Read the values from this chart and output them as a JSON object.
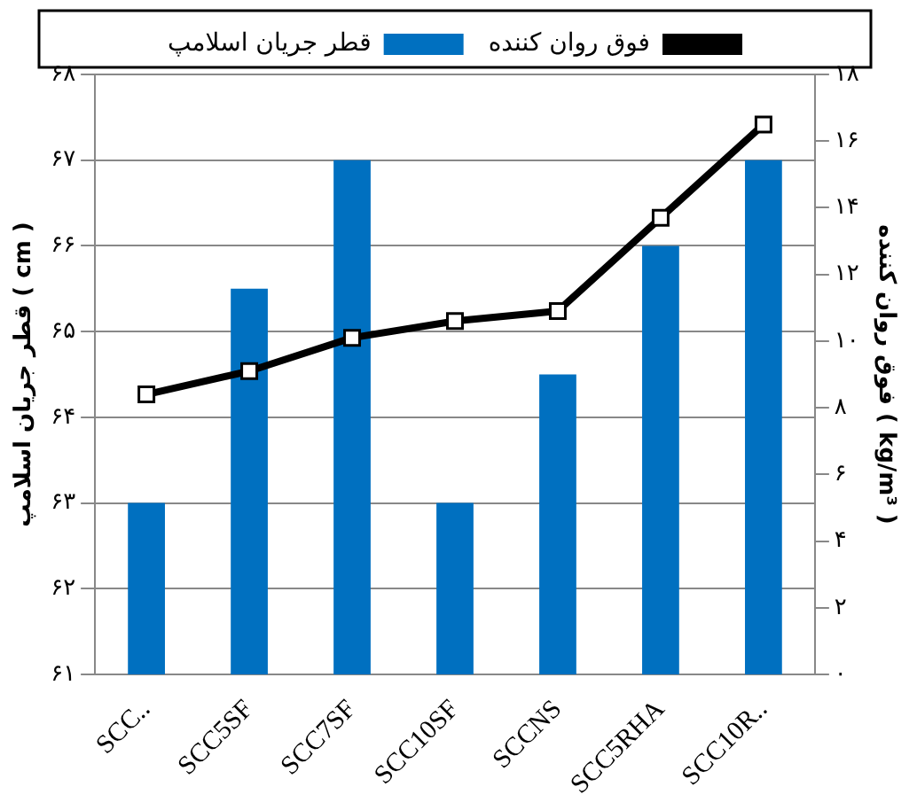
{
  "chart_data": {
    "type": "bar",
    "categories": [
      "SCC..",
      "SCC5SF",
      "SCC7SF",
      "SCC10SF",
      "SCCNS",
      "SCC5RHA",
      "SCC10R.."
    ],
    "series": [
      {
        "name": "قطر جریان اسلامپ",
        "color": "#0070c0",
        "values": [
          63,
          65.5,
          67,
          63,
          64.5,
          66,
          67
        ]
      },
      {
        "name": "فوق روان کننده",
        "type": "line",
        "axis": "y2",
        "color": "#000000",
        "values": [
          8.4,
          9.1,
          10.1,
          10.6,
          10.9,
          13.7,
          16.5
        ]
      }
    ],
    "ylabel": "قطر جریان اسلامپ ( cm )",
    "y2label": "فوق روان کننده ( kg/m³ )",
    "ylim": [
      61,
      68
    ],
    "yticks": [
      {
        "value": 61,
        "label": "۶۱"
      },
      {
        "value": 62,
        "label": "۶۲"
      },
      {
        "value": 63,
        "label": "۶۳"
      },
      {
        "value": 64,
        "label": "۶۴"
      },
      {
        "value": 65,
        "label": "۶۵"
      },
      {
        "value": 66,
        "label": "۶۶"
      },
      {
        "value": 67,
        "label": "۶۷"
      },
      {
        "value": 68,
        "label": "۶۸"
      }
    ],
    "y2lim": [
      0,
      18
    ],
    "y2ticks": [
      {
        "value": 0,
        "label": "۰"
      },
      {
        "value": 2,
        "label": "۲"
      },
      {
        "value": 4,
        "label": "۴"
      },
      {
        "value": 6,
        "label": "۶"
      },
      {
        "value": 8,
        "label": "۸"
      },
      {
        "value": 10,
        "label": "۱۰"
      },
      {
        "value": 12,
        "label": "۱۲"
      },
      {
        "value": 14,
        "label": "۱۴"
      },
      {
        "value": 16,
        "label": "۱۶"
      },
      {
        "value": 18,
        "label": "۱۸"
      }
    ],
    "grid": "y",
    "legend": "top",
    "marker": "square",
    "line_style": "solid"
  }
}
